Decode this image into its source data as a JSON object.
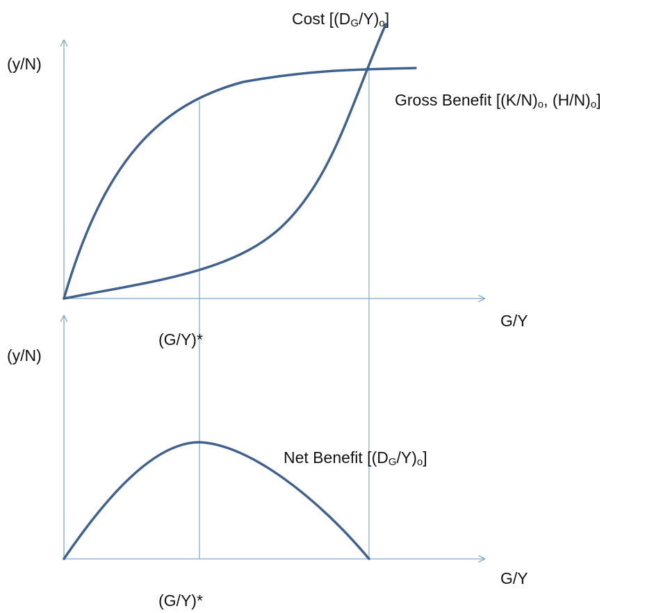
{
  "top_panel": {
    "y_axis_label": "(y/N)",
    "x_axis_label": "G/Y",
    "optimum_label": "(G/Y)*",
    "cost_label": [
      "Cost [(D",
      "G",
      "/Y)",
      "o",
      "]"
    ],
    "gross_benefit_label": [
      "Gross Benefit [(K/N)",
      "o",
      ", (H/N)",
      "o",
      "]"
    ]
  },
  "bottom_panel": {
    "y_axis_label": "(y/N)",
    "x_axis_label": "G/Y",
    "optimum_label": "(G/Y)*",
    "net_benefit_label": [
      "Net Benefit [(D",
      "G",
      "/Y)",
      "o",
      "]"
    ]
  }
}
